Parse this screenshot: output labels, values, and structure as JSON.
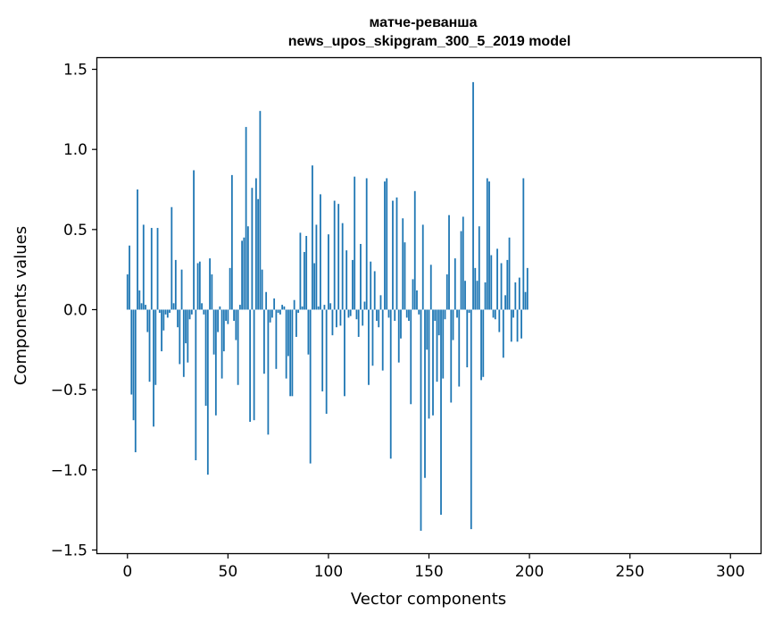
{
  "chart_data": {
    "type": "bar",
    "title_line1": "матче-реванша",
    "title_line2": "news_upos_skipgram_300_5_2019 model",
    "xlabel": "Vector components",
    "ylabel": "Components values",
    "xlim": [
      -15,
      315
    ],
    "ylim": [
      -1.52,
      1.57
    ],
    "xticks": [
      0,
      50,
      100,
      150,
      200,
      250,
      300
    ],
    "xtick_labels": [
      "0",
      "50",
      "100",
      "150",
      "200",
      "250",
      "300"
    ],
    "yticks": [
      1.5,
      1.0,
      0.5,
      0.0,
      -0.5,
      -1.0,
      -1.5
    ],
    "ytick_labels": [
      "1.5",
      "1.0",
      "0.5",
      "0.0",
      "−0.5",
      "−1.0",
      "−1.5"
    ],
    "grid": false,
    "bar_color": "#1f77b4",
    "values": [
      0.22,
      0.4,
      -0.53,
      -0.69,
      -0.89,
      0.75,
      0.12,
      0.04,
      0.53,
      0.03,
      -0.14,
      -0.45,
      0.51,
      -0.73,
      -0.47,
      0.51,
      -0.02,
      -0.26,
      -0.13,
      -0.03,
      -0.05,
      -0.02,
      0.64,
      0.04,
      0.31,
      -0.11,
      -0.34,
      0.25,
      -0.42,
      -0.21,
      -0.33,
      -0.06,
      -0.03,
      0.87,
      -0.94,
      0.29,
      0.3,
      0.04,
      -0.03,
      -0.6,
      -1.03,
      0.32,
      0.22,
      -0.28,
      -0.66,
      -0.14,
      0.02,
      -0.43,
      -0.26,
      -0.07,
      -0.09,
      0.26,
      0.84,
      -0.07,
      -0.19,
      -0.47,
      0.03,
      0.43,
      0.45,
      1.14,
      0.52,
      -0.7,
      0.76,
      -0.69,
      0.82,
      0.69,
      1.24,
      0.25,
      -0.4,
      0.11,
      -0.78,
      -0.08,
      -0.05,
      0.07,
      -0.37,
      -0.02,
      -0.03,
      0.03,
      0.02,
      -0.43,
      -0.29,
      -0.54,
      -0.54,
      0.06,
      -0.17,
      -0.02,
      0.48,
      0.02,
      0.36,
      0.46,
      -0.28,
      -0.96,
      0.9,
      0.29,
      0.53,
      0.02,
      0.72,
      -0.51,
      0.03,
      -0.65,
      0.47,
      0.04,
      -0.16,
      0.68,
      -0.11,
      0.66,
      -0.1,
      0.54,
      -0.54,
      0.37,
      -0.05,
      -0.04,
      0.31,
      0.83,
      -0.06,
      -0.17,
      0.41,
      -0.1,
      0.05,
      0.82,
      -0.47,
      0.3,
      -0.35,
      0.24,
      -0.07,
      -0.11,
      0.09,
      -0.38,
      0.8,
      0.82,
      -0.05,
      -0.93,
      0.68,
      -0.07,
      0.7,
      -0.33,
      -0.18,
      0.57,
      0.42,
      -0.05,
      -0.07,
      -0.59,
      0.19,
      0.74,
      0.12,
      -0.03,
      -1.38,
      0.53,
      -1.05,
      -0.25,
      -0.68,
      0.28,
      -0.66,
      -0.07,
      -0.45,
      -0.16,
      -1.28,
      -0.43,
      -0.06,
      0.22,
      0.59,
      -0.58,
      -0.19,
      0.32,
      -0.05,
      -0.48,
      0.49,
      0.58,
      0.18,
      -0.36,
      -0.02,
      -1.37,
      1.42,
      0.26,
      0.18,
      0.52,
      -0.44,
      -0.42,
      0.17,
      0.82,
      0.8,
      0.34,
      -0.05,
      -0.06,
      0.38,
      -0.14,
      0.29,
      -0.3,
      0.09,
      0.31,
      0.45,
      -0.2,
      -0.05,
      0.17,
      -0.2,
      0.2,
      -0.18,
      0.82,
      0.11,
      0.26
    ]
  }
}
